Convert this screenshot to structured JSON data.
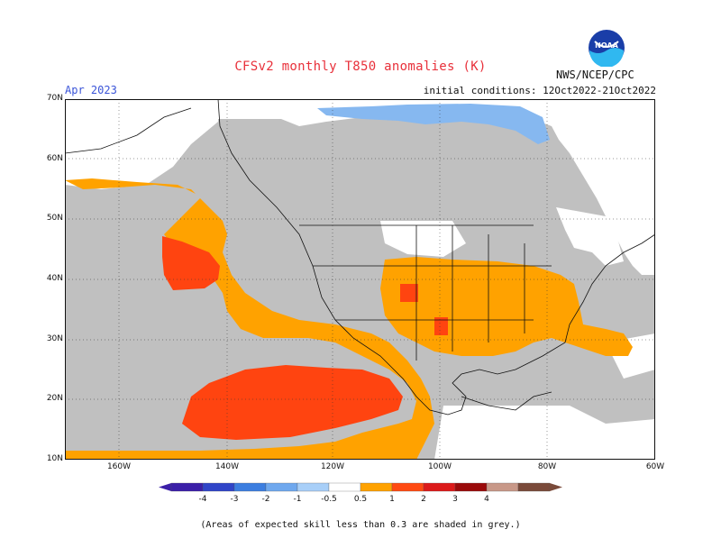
{
  "title": "CFSv2 monthly T850 anomalies (K)",
  "valid": "Apr 2023",
  "init": "initial conditions: 12Oct2022-21Oct2022",
  "agency": "NWS/NCEP/CPC",
  "logo": {
    "text": "NOAA",
    "icon": "noaa-logo"
  },
  "lat_labels": [
    "70N",
    "60N",
    "50N",
    "40N",
    "30N",
    "20N",
    "10N"
  ],
  "lon_labels": [
    "160W",
    "140W",
    "120W",
    "100W",
    "80W",
    "60W"
  ],
  "colorbar": {
    "labels": [
      "-4",
      "-3",
      "-2",
      "-1",
      "-0.5",
      "0.5",
      "1",
      "2",
      "3",
      "4"
    ],
    "colors": [
      "#3b1fa8",
      "#3045c8",
      "#3c7ee0",
      "#6fa8ee",
      "#a8cff8",
      "#ffffff",
      "#ffa200",
      "#ff4a12",
      "#dc1a1a",
      "#9a0a0a",
      "#c89888",
      "#7a4a3a"
    ]
  },
  "note": "(Areas of expected skill less than 0.3 are shaded in grey.)",
  "colors": {
    "grey": "#c0c0c0",
    "orange": "#ffa200",
    "red": "#ff4410",
    "lightblue": "#86b8f0",
    "title": "#e8303a"
  }
}
